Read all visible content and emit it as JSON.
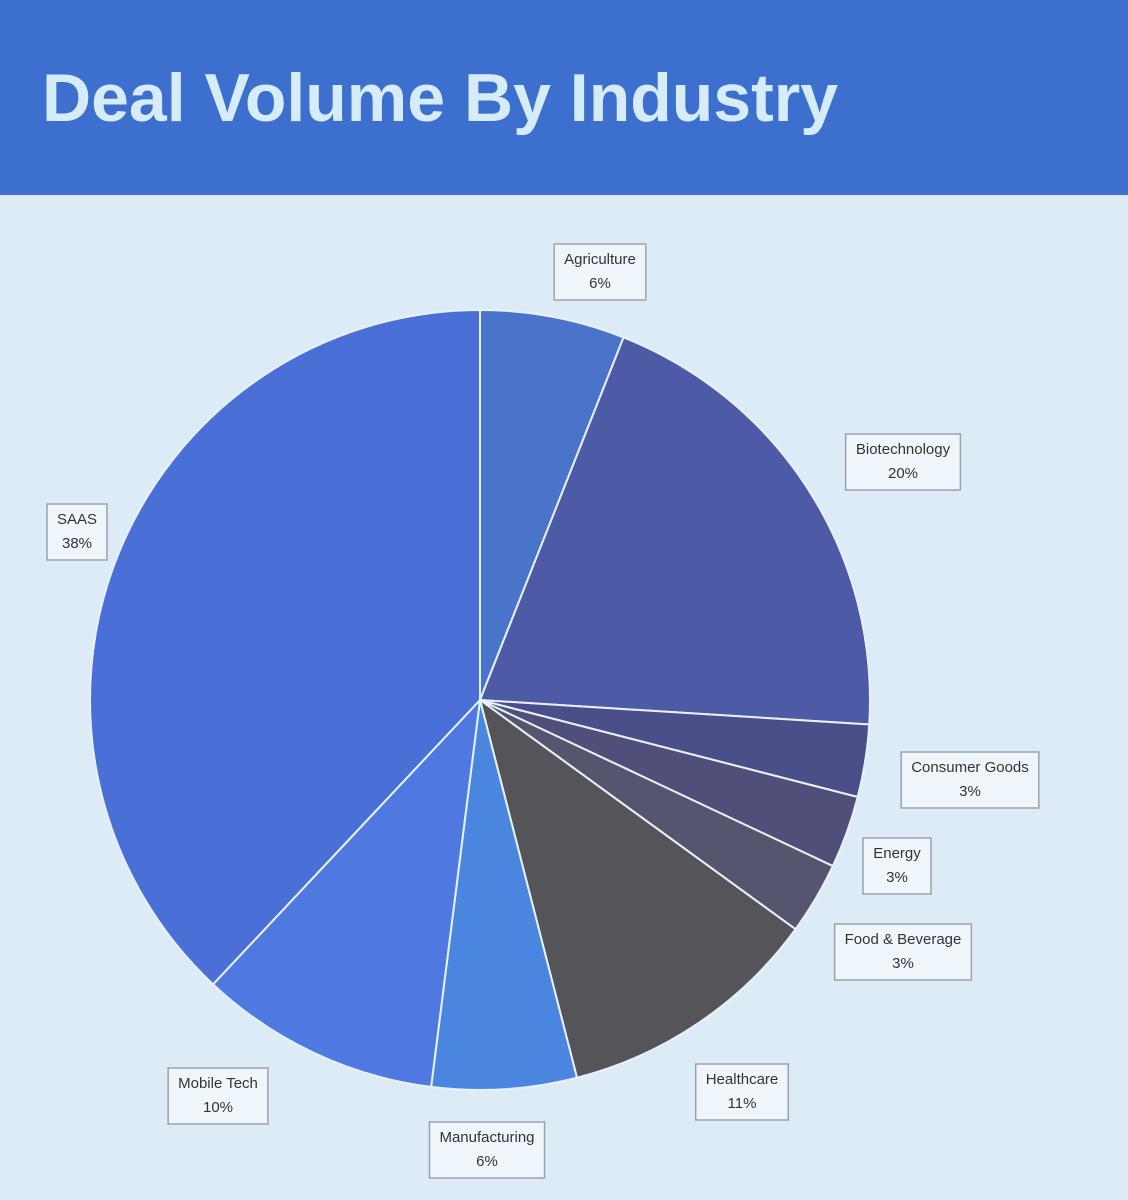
{
  "chart_data": {
    "type": "pie",
    "title": "Deal Volume By Industry",
    "categories": [
      "Agriculture",
      "Biotechnology",
      "Consumer Goods",
      "Energy",
      "Food & Beverage",
      "Healthcare",
      "Manufacturing",
      "Mobile Tech",
      "SAAS"
    ],
    "values": [
      6,
      20,
      3,
      3,
      3,
      11,
      6,
      10,
      38
    ],
    "value_labels": [
      "6%",
      "20%",
      "3%",
      "3%",
      "3%",
      "11%",
      "6%",
      "10%",
      "38%"
    ],
    "colors": [
      "#4a74c9",
      "#4d5aa6",
      "#4a4f8a",
      "#4f4f7a",
      "#565570",
      "#555459",
      "#4a86e0",
      "#4f78e0",
      "#4a6fd6"
    ]
  }
}
